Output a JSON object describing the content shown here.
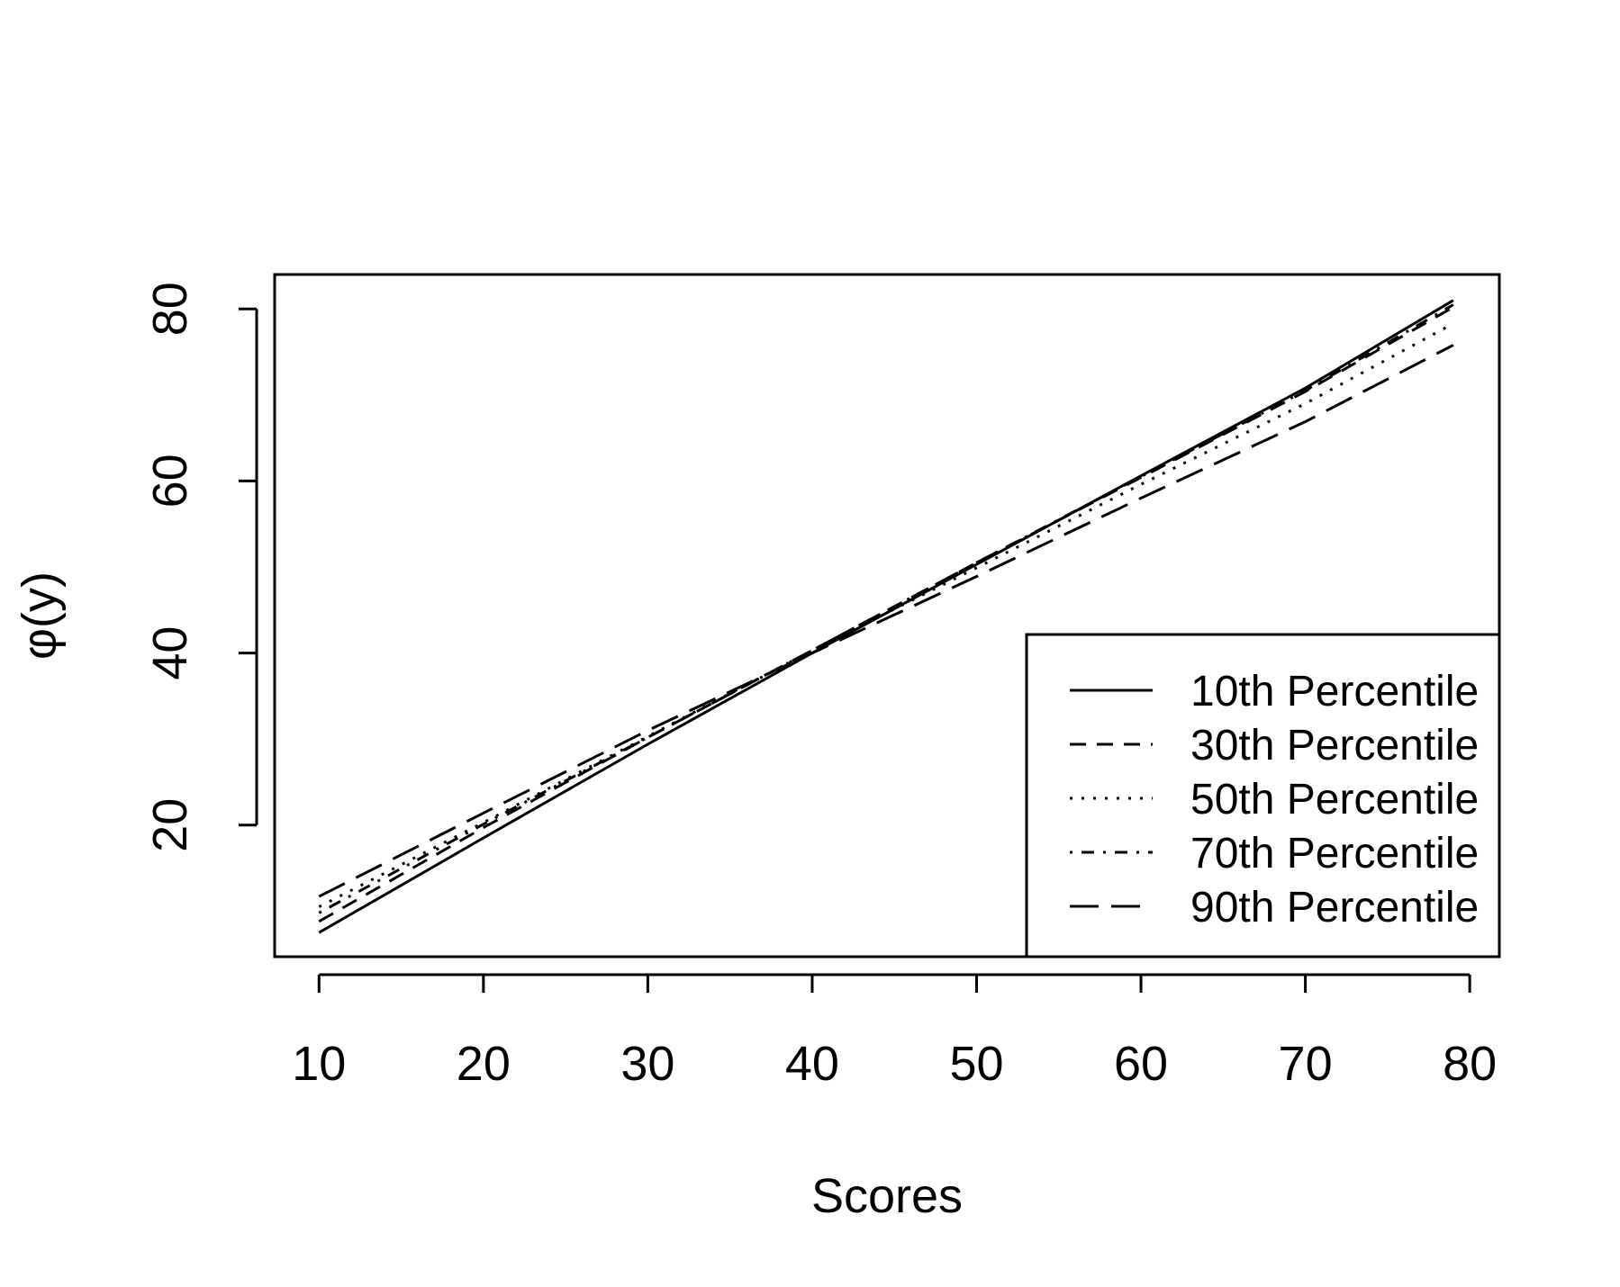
{
  "chart_data": {
    "type": "line",
    "title": "",
    "xlabel": "Scores",
    "ylabel": "φ(y)",
    "xlim": [
      7.3,
      81.8
    ],
    "ylim": [
      4.7,
      84.0
    ],
    "xticks": [
      10,
      20,
      30,
      40,
      50,
      60,
      70,
      80
    ],
    "yticks": [
      20,
      40,
      60,
      80
    ],
    "grid": false,
    "legend_position": "bottom-right",
    "x": [
      10,
      20,
      30,
      40,
      50,
      60,
      70,
      79
    ],
    "series": [
      {
        "name": "10th Percentile",
        "dash": "solid",
        "values": [
          7.5,
          18.5,
          29.4,
          40.0,
          50.3,
          60.6,
          70.8,
          81.0
        ]
      },
      {
        "name": "30th Percentile",
        "dash": "dashed",
        "values": [
          8.8,
          19.7,
          30.2,
          40.3,
          50.5,
          60.4,
          70.4,
          80.2
        ]
      },
      {
        "name": "50th Percentile",
        "dash": "dotted",
        "values": [
          10.5,
          20.3,
          30.3,
          40.3,
          49.9,
          59.6,
          69.0,
          78.3
        ]
      },
      {
        "name": "70th Percentile",
        "dash": "dotdash",
        "values": [
          9.8,
          20.1,
          30.2,
          40.3,
          50.5,
          60.5,
          70.5,
          80.5
        ]
      },
      {
        "name": "90th Percentile",
        "dash": "longdash",
        "values": [
          11.7,
          21.4,
          31.0,
          40.0,
          48.9,
          58.0,
          66.9,
          75.8
        ]
      }
    ]
  }
}
